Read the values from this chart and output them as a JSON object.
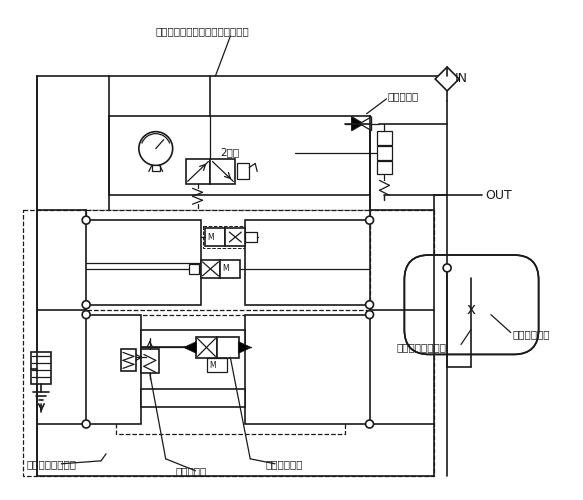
{
  "bg": "#ffffff",
  "lc": "#1a1a1a",
  "gray": "#aaaaaa",
  "labels": {
    "top": "ミスト発生差圧確認用手動切換弁",
    "plug": "給油プラグ",
    "v2way": "2方弁",
    "in": "IN",
    "out": "OUT",
    "tank": "オイルタンク",
    "nozzle": "ミスト発生ノズル",
    "opsw": "運転制御用切換弁",
    "diffv": "差圧調整弁",
    "relay": "リレーバルブ"
  }
}
